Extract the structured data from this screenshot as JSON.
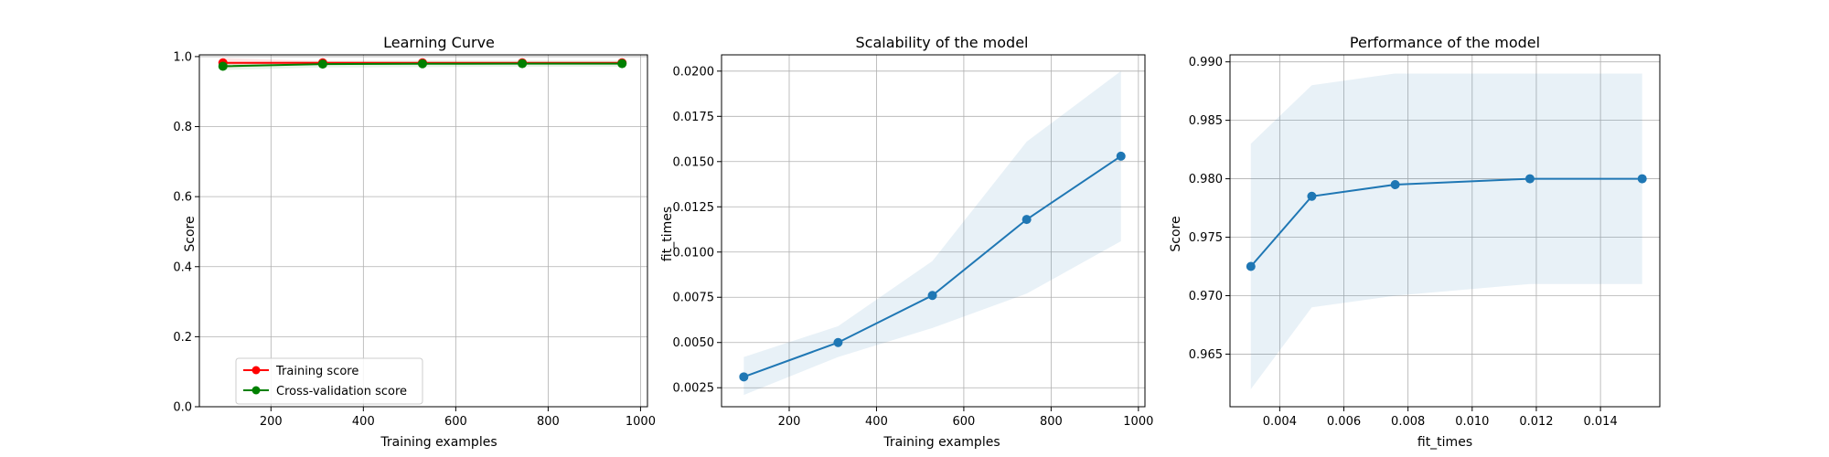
{
  "chart_data": [
    {
      "type": "line",
      "title": "Learning Curve",
      "xlabel": "Training examples",
      "ylabel": "Score",
      "xlim": [
        45,
        1015
      ],
      "ylim": [
        0.0,
        1.005
      ],
      "xticks": [
        200,
        400,
        600,
        800,
        1000
      ],
      "yticks": [
        0.0,
        0.2,
        0.4,
        0.6,
        0.8,
        1.0
      ],
      "xtick_labels": [
        "200",
        "400",
        "600",
        "800",
        "1000"
      ],
      "ytick_labels": [
        "0.0",
        "0.2",
        "0.4",
        "0.6",
        "0.8",
        "1.0"
      ],
      "grid": true,
      "legend": "lower-left",
      "x": [
        96,
        312,
        528,
        744,
        960
      ],
      "series": [
        {
          "name": "Training score",
          "color": "#ff0000",
          "values": [
            0.982,
            0.982,
            0.982,
            0.982,
            0.982
          ],
          "band_lower": [
            0.968,
            0.978,
            0.978,
            0.979,
            0.979
          ],
          "band_upper": [
            0.996,
            0.987,
            0.985,
            0.985,
            0.985
          ]
        },
        {
          "name": "Cross-validation score",
          "color": "#008000",
          "values": [
            0.9725,
            0.9785,
            0.9795,
            0.98,
            0.98
          ],
          "band_lower": [
            0.962,
            0.969,
            0.97,
            0.971,
            0.971
          ],
          "band_upper": [
            0.983,
            0.988,
            0.989,
            0.989,
            0.989
          ]
        }
      ]
    },
    {
      "type": "line",
      "title": "Scalability of the model",
      "xlabel": "Training examples",
      "ylabel": "fit_times",
      "xlim": [
        45,
        1015
      ],
      "ylim": [
        0.00145,
        0.0209
      ],
      "xticks": [
        200,
        400,
        600,
        800,
        1000
      ],
      "yticks": [
        0.0025,
        0.005,
        0.0075,
        0.01,
        0.0125,
        0.015,
        0.0175,
        0.02
      ],
      "xtick_labels": [
        "200",
        "400",
        "600",
        "800",
        "1000"
      ],
      "ytick_labels": [
        "0.0025",
        "0.0050",
        "0.0075",
        "0.0100",
        "0.0125",
        "0.0150",
        "0.0175",
        "0.0200"
      ],
      "grid": true,
      "x": [
        96,
        312,
        528,
        744,
        960
      ],
      "series": [
        {
          "color": "#1f77b4",
          "values": [
            0.0031,
            0.005,
            0.0076,
            0.0118,
            0.0153
          ],
          "band_lower": [
            0.0021,
            0.0042,
            0.0058,
            0.0077,
            0.0106
          ],
          "band_upper": [
            0.0042,
            0.0059,
            0.0095,
            0.0161,
            0.02
          ]
        }
      ]
    },
    {
      "type": "line",
      "title": "Performance of the model",
      "xlabel": "fit_times",
      "ylabel": "Score",
      "xlim": [
        0.00245,
        0.01585
      ],
      "ylim": [
        0.9605,
        0.9906
      ],
      "xticks": [
        0.004,
        0.006,
        0.008,
        0.01,
        0.012,
        0.014
      ],
      "yticks": [
        0.965,
        0.97,
        0.975,
        0.98,
        0.985,
        0.99
      ],
      "xtick_labels": [
        "0.004",
        "0.006",
        "0.008",
        "0.010",
        "0.012",
        "0.014"
      ],
      "ytick_labels": [
        "0.965",
        "0.970",
        "0.975",
        "0.980",
        "0.985",
        "0.990"
      ],
      "grid": true,
      "x": [
        0.0031,
        0.005,
        0.0076,
        0.0118,
        0.0153
      ],
      "series": [
        {
          "color": "#1f77b4",
          "values": [
            0.9725,
            0.9785,
            0.9795,
            0.98,
            0.98
          ],
          "band_lower": [
            0.962,
            0.969,
            0.97,
            0.971,
            0.971
          ],
          "band_upper": [
            0.983,
            0.988,
            0.989,
            0.989,
            0.989
          ]
        }
      ]
    }
  ]
}
